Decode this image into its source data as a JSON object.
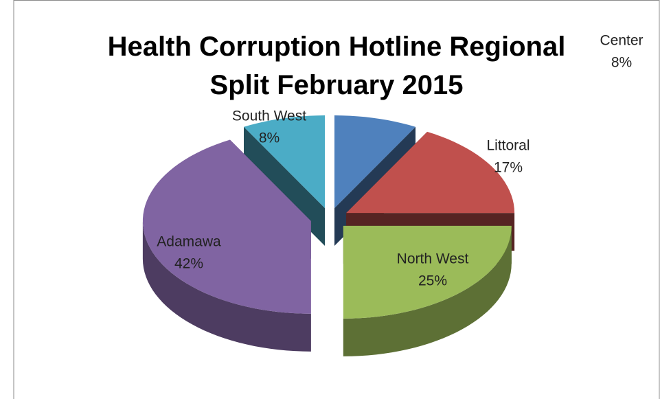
{
  "chart_data": {
    "type": "pie",
    "title": "Health Corruption Hotline Regional Split February 2015",
    "categories": [
      "Center",
      "Littoral",
      "North West",
      "Adamawa",
      "South West"
    ],
    "values": [
      8,
      17,
      25,
      42,
      8
    ],
    "value_labels": [
      "8%",
      "17%",
      "25%",
      "42%",
      "8%"
    ],
    "colors": [
      "#4f81bd",
      "#c0504d",
      "#9bbb59",
      "#8064a2",
      "#4bacc6"
    ]
  }
}
